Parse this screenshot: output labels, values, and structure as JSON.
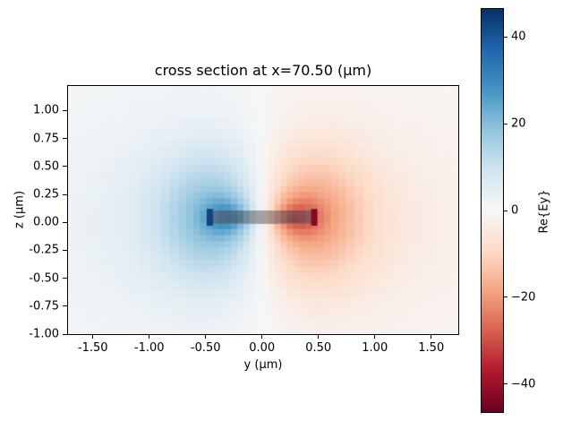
{
  "figure": {
    "background": "#ffffff"
  },
  "chart_data": {
    "type": "heatmap",
    "title": "cross section at x=70.50 (μm)",
    "xlabel": "y (μm)",
    "ylabel": "z (μm)",
    "xlim": [
      -1.72,
      1.74
    ],
    "ylim": [
      -1.0,
      1.22
    ],
    "grid": false,
    "xticks": {
      "values": [
        -1.5,
        -1.0,
        -0.5,
        0.0,
        0.5,
        1.0,
        1.5
      ],
      "labels": [
        "-1.50",
        "-1.00",
        "-0.50",
        "0.00",
        "0.50",
        "1.00",
        "1.50"
      ]
    },
    "yticks": {
      "values": [
        1.0,
        0.75,
        0.5,
        0.25,
        0.0,
        -0.25,
        -0.5,
        -0.75,
        -1.0
      ],
      "labels": [
        "1.00",
        "0.75",
        "0.50",
        "0.25",
        "0.00",
        "-0.25",
        "-0.50",
        "-0.75",
        "-1.00"
      ]
    },
    "colorbar": {
      "label": "Re{Ey}",
      "vmin": -46.4,
      "vmax": 46.4,
      "ticks": {
        "values": [
          40,
          20,
          0,
          -20,
          -40
        ],
        "labels": [
          "40",
          "20",
          "0",
          "−20",
          "−40"
        ]
      },
      "colormap": "RdBu",
      "colormap_stops": [
        [
          0.0,
          "#67001f"
        ],
        [
          0.1,
          "#b2182b"
        ],
        [
          0.2,
          "#d6604d"
        ],
        [
          0.3,
          "#f4a582"
        ],
        [
          0.4,
          "#fddbc7"
        ],
        [
          0.5,
          "#f7f7f7"
        ],
        [
          0.6,
          "#d1e5f0"
        ],
        [
          0.7,
          "#92c5de"
        ],
        [
          0.8,
          "#4393c3"
        ],
        [
          0.9,
          "#2166ac"
        ],
        [
          1.0,
          "#053061"
        ]
      ]
    },
    "field": {
      "description": "Antisymmetric dipole-like Re{Ey}: positive (blue) lobe centered near y=-0.33, z=0.05, negative (red) lobe near y=+0.33, z=0.05, peak |Ey| at waveguide sidewalls y=±0.47; semi-transparent gray waveguide overlay from y=-0.44 to 0.44, z=0 to 0.1; pale blue tint over left half, pale red tint over right half, white seam at y=0.",
      "background_dipole": {
        "amp": 0.12,
        "tanh_w": 0.4,
        "sy": 2.0,
        "sz": 1.1
      },
      "lobes": [
        {
          "y": -0.34,
          "z": 0.05,
          "sy": 0.55,
          "sz": 0.55,
          "amp": 0.4
        },
        {
          "y": 0.34,
          "z": 0.05,
          "sy": 0.55,
          "sz": 0.55,
          "amp": -0.4
        },
        {
          "y": -0.3,
          "z": 0.05,
          "sy": 0.22,
          "sz": 0.18,
          "amp": 0.25
        },
        {
          "y": 0.3,
          "z": 0.05,
          "sy": 0.22,
          "sz": 0.18,
          "amp": -0.25
        },
        {
          "y": -0.26,
          "z": 0.05,
          "sy": 0.16,
          "sz": 0.055,
          "amp": 0.2
        },
        {
          "y": 0.26,
          "z": 0.05,
          "sy": 0.16,
          "sz": 0.055,
          "amp": -0.2
        }
      ],
      "wall_spikes": [
        {
          "y0": -0.49,
          "y1": -0.435,
          "z0": -0.03,
          "z1": 0.12,
          "amp": 0.92
        },
        {
          "y0": 0.435,
          "y1": 0.49,
          "z0": -0.03,
          "z1": 0.12,
          "amp": -0.92
        }
      ],
      "structure_overlay": {
        "y0": -0.435,
        "y1": 0.435,
        "z0": -0.014,
        "z1": 0.106,
        "color": "rgba(100,100,100,0.55)"
      },
      "mesh": {
        "base_step": 0.055,
        "growth": 1.5,
        "grow_start_y": 0.5,
        "grow_start_z": 0.3,
        "max_step": 0.17
      }
    }
  }
}
